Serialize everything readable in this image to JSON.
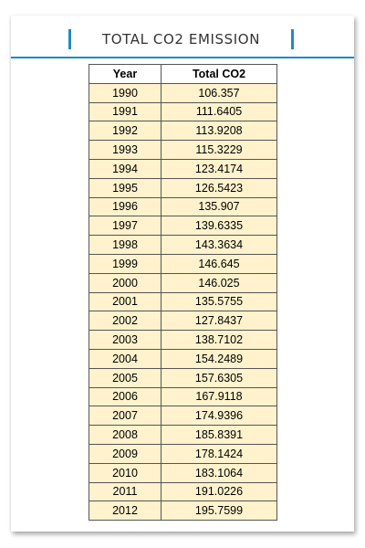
{
  "header": {
    "title": "TOTAL CO2 EMISSION"
  },
  "table": {
    "columns": [
      "Year",
      "Total CO2"
    ],
    "rows": [
      [
        "1990",
        "106.357"
      ],
      [
        "1991",
        "111.6405"
      ],
      [
        "1992",
        "113.9208"
      ],
      [
        "1993",
        "115.3229"
      ],
      [
        "1994",
        "123.4174"
      ],
      [
        "1995",
        "126.5423"
      ],
      [
        "1996",
        "135.907"
      ],
      [
        "1997",
        "139.6335"
      ],
      [
        "1998",
        "143.3634"
      ],
      [
        "1999",
        "146.645"
      ],
      [
        "2000",
        "146.025"
      ],
      [
        "2001",
        "135.5755"
      ],
      [
        "2002",
        "127.8437"
      ],
      [
        "2003",
        "138.7102"
      ],
      [
        "2004",
        "154.2489"
      ],
      [
        "2005",
        "157.6305"
      ],
      [
        "2006",
        "167.9118"
      ],
      [
        "2007",
        "174.9396"
      ],
      [
        "2008",
        "185.8391"
      ],
      [
        "2009",
        "178.1424"
      ],
      [
        "2010",
        "183.1064"
      ],
      [
        "2011",
        "191.0226"
      ],
      [
        "2012",
        "195.7599"
      ]
    ]
  },
  "colors": {
    "accent": "#1f8ac9",
    "cell_fill": "#fff2cc",
    "border": "#555555"
  }
}
